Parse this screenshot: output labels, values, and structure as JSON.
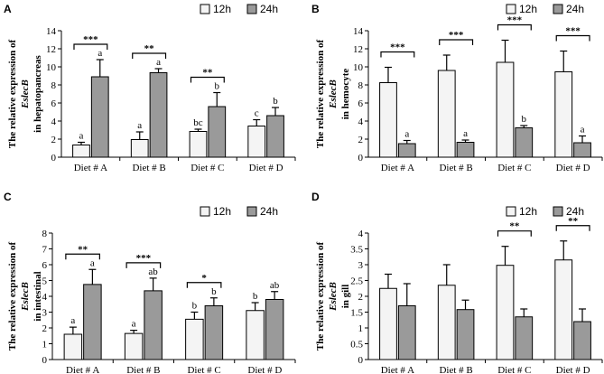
{
  "legend": [
    "12h",
    "24h"
  ],
  "colors": {
    "bar_12h": "#f4f4f4",
    "bar_24h": "#9a9a9a",
    "stroke": "#000000"
  },
  "chart_data": [
    {
      "panel": "A",
      "type": "bar",
      "categories": [
        "Diet # A",
        "Diet # B",
        "Diet # C",
        "Diet # D"
      ],
      "series": [
        {
          "name": "12h",
          "values": [
            1.35,
            1.95,
            2.85,
            3.45
          ],
          "errors": [
            0.3,
            0.85,
            0.25,
            0.7
          ]
        },
        {
          "name": "24h",
          "values": [
            8.9,
            9.35,
            5.6,
            4.6
          ],
          "errors": [
            1.9,
            0.45,
            1.55,
            0.9
          ]
        }
      ],
      "ylim": [
        0,
        14
      ],
      "yticks": [
        0,
        2,
        4,
        6,
        8,
        10,
        12,
        14
      ],
      "ylabel": {
        "line1": "The relative expression of",
        "gene": "EslecB",
        "line3": "in hepatopancreas"
      },
      "letters": [
        [
          "a",
          "a"
        ],
        [
          "a",
          "a"
        ],
        [
          "bc",
          "b"
        ],
        [
          "c",
          "b"
        ]
      ],
      "significance": [
        "***",
        "**",
        "**",
        ""
      ]
    },
    {
      "panel": "B",
      "type": "bar",
      "categories": [
        "Diet # A",
        "Diet # B",
        "Diet # C",
        "Diet # D"
      ],
      "series": [
        {
          "name": "12h",
          "values": [
            8.25,
            9.6,
            10.5,
            9.45
          ],
          "errors": [
            1.7,
            1.7,
            2.45,
            2.3
          ]
        },
        {
          "name": "24h",
          "values": [
            1.5,
            1.65,
            3.25,
            1.6
          ],
          "errors": [
            0.35,
            0.25,
            0.25,
            0.75
          ]
        }
      ],
      "ylim": [
        0,
        14
      ],
      "yticks": [
        0,
        2,
        4,
        6,
        8,
        10,
        12,
        14
      ],
      "ylabel": {
        "line1": "The relative expression of",
        "gene": "EslecB",
        "line3": "in hemocyte"
      },
      "letters": [
        [
          "",
          "a"
        ],
        [
          "",
          "a"
        ],
        [
          "",
          "b"
        ],
        [
          "",
          "a"
        ]
      ],
      "significance": [
        "***",
        "***",
        "***",
        "***"
      ]
    },
    {
      "panel": "C",
      "type": "bar",
      "categories": [
        "Diet # A",
        "Diet # B",
        "Diet # C",
        "Diet # D"
      ],
      "series": [
        {
          "name": "12h",
          "values": [
            1.6,
            1.65,
            2.55,
            3.1
          ],
          "errors": [
            0.45,
            0.2,
            0.45,
            0.5
          ]
        },
        {
          "name": "24h",
          "values": [
            4.75,
            4.35,
            3.4,
            3.8
          ],
          "errors": [
            0.95,
            0.8,
            0.5,
            0.5
          ]
        }
      ],
      "ylim": [
        0,
        8
      ],
      "yticks": [
        0,
        1,
        2,
        3,
        4,
        5,
        6,
        7,
        8
      ],
      "ylabel": {
        "line1": "The relative expression of",
        "gene": "EslecB",
        "line3": "in intestinal"
      },
      "letters": [
        [
          "a",
          "a"
        ],
        [
          "a",
          "ab"
        ],
        [
          "b",
          "b"
        ],
        [
          "b",
          "ab"
        ]
      ],
      "significance": [
        "**",
        "***",
        "*",
        ""
      ]
    },
    {
      "panel": "D",
      "type": "bar",
      "categories": [
        "Diet # A",
        "Diet # B",
        "Diet # C",
        "Diet # D"
      ],
      "series": [
        {
          "name": "12h",
          "values": [
            2.25,
            2.35,
            2.98,
            3.15
          ],
          "errors": [
            0.45,
            0.65,
            0.6,
            0.6
          ]
        },
        {
          "name": "24h",
          "values": [
            1.7,
            1.58,
            1.35,
            1.2
          ],
          "errors": [
            0.7,
            0.3,
            0.25,
            0.4
          ]
        }
      ],
      "ylim": [
        0,
        4
      ],
      "yticks": [
        0,
        0.5,
        1,
        1.5,
        2,
        2.5,
        3,
        3.5,
        4
      ],
      "ylabel": {
        "line1": "The relative expression of",
        "gene": "EslecB",
        "line3": "in gill"
      },
      "letters": [
        [
          "",
          ""
        ],
        [
          "",
          ""
        ],
        [
          "",
          ""
        ],
        [
          "",
          ""
        ]
      ],
      "significance": [
        "",
        "",
        "**",
        "**"
      ]
    }
  ]
}
